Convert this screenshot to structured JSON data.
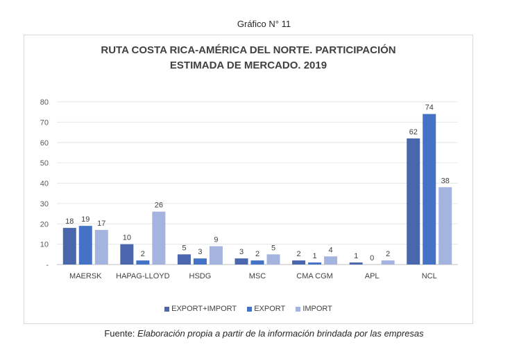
{
  "figure_label": "Gráfico N° 11",
  "source": {
    "prefix": "Fuente: ",
    "text": "Elaboración propia a partir de la información brindada por las empresas"
  },
  "chart_data": {
    "type": "bar",
    "title_line1": "RUTA COSTA RICA-AMÉRICA DEL NORTE. PARTICIPACIÓN",
    "title_line2": "ESTIMADA DE MERCADO. 2019",
    "categories": [
      "MAERSK",
      "HAPAG-LLOYD",
      "HSDG",
      "MSC",
      "CMA CGM",
      "APL",
      "NCL"
    ],
    "series": [
      {
        "name": "EXPORT+IMPORT",
        "color": "#4a66ac",
        "values": [
          18,
          10,
          5,
          3,
          2,
          1,
          62
        ]
      },
      {
        "name": "EXPORT",
        "color": "#4472c4",
        "values": [
          19,
          2,
          3,
          2,
          1,
          0,
          74
        ]
      },
      {
        "name": "IMPORT",
        "color": "#a5b4df",
        "values": [
          17,
          26,
          9,
          5,
          4,
          2,
          38
        ]
      }
    ],
    "y_ticks": [
      "-",
      "10",
      "20",
      "30",
      "40",
      "50",
      "60",
      "70",
      "80"
    ],
    "ylim": [
      0,
      80
    ],
    "grid": true,
    "legend_position": "bottom"
  }
}
